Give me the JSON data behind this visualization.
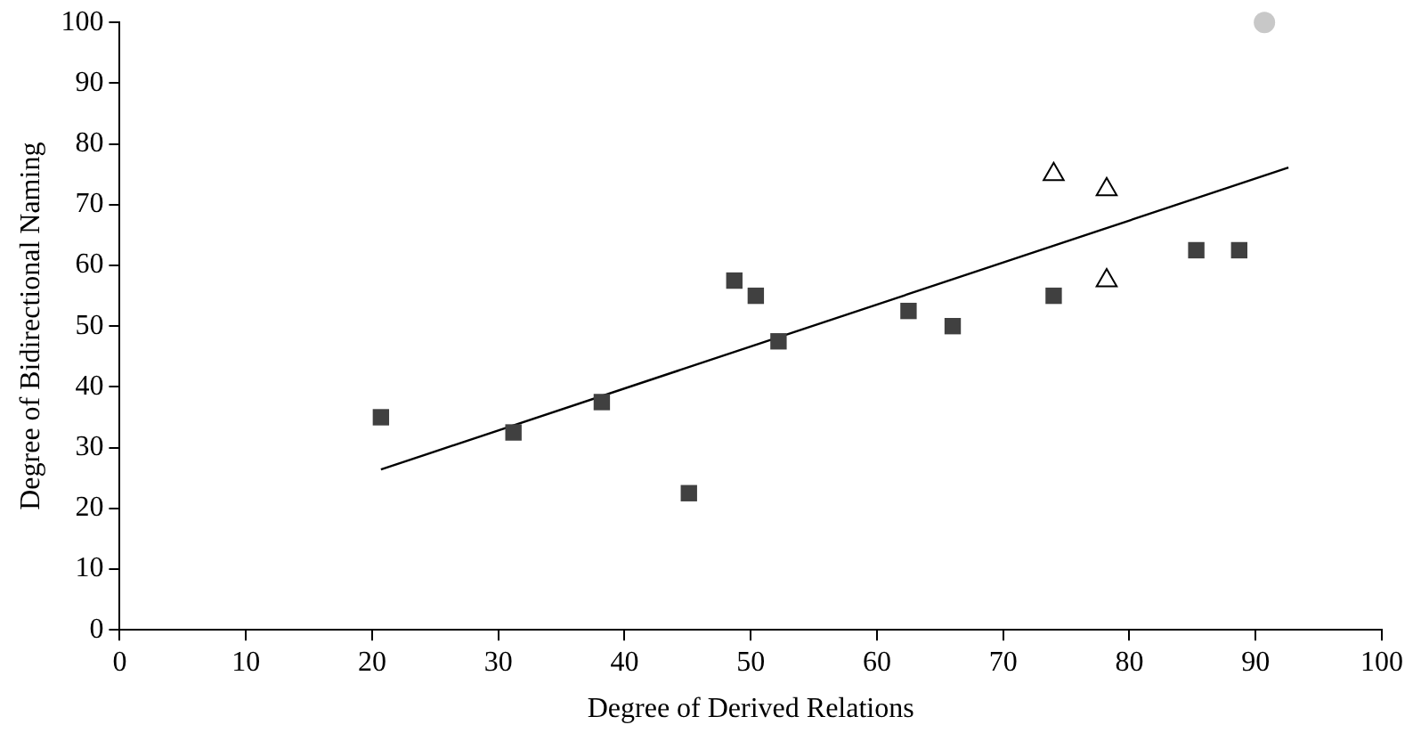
{
  "chart_data": {
    "type": "scatter",
    "xlabel": "Degree of Derived Relations",
    "ylabel": "Degree of Bidirectional Naming",
    "xlim": [
      0,
      100
    ],
    "xticks": [
      0,
      10,
      20,
      30,
      40,
      50,
      60,
      70,
      80,
      90,
      100
    ],
    "ylim": [
      0,
      100
    ],
    "yticks": [
      0,
      10,
      20,
      30,
      40,
      50,
      60,
      70,
      80,
      90,
      100
    ],
    "grid": false,
    "legend": false,
    "series": [
      {
        "marker": "square",
        "color": "#404040",
        "x": [
          20.7,
          31.2,
          38.2,
          45.1,
          48.7,
          50.4,
          52.2,
          62.5,
          66,
          74,
          85.3,
          88.7
        ],
        "values": [
          35,
          32.5,
          37.5,
          22.5,
          57.5,
          55,
          47.5,
          52.5,
          50,
          55,
          62.5,
          62.5
        ]
      },
      {
        "marker": "triangle",
        "color": "#000000",
        "x": [
          74,
          78.2,
          78.2
        ],
        "values": [
          75,
          72.5,
          57.5
        ]
      },
      {
        "marker": "circle",
        "color": "#c8c8c8",
        "x": [
          90.7
        ],
        "values": [
          100
        ]
      },
      {
        "type": "line",
        "marker": "none",
        "color": "#000000",
        "x": [
          20.7,
          92.6
        ],
        "values": [
          26.4,
          76.1
        ]
      }
    ]
  }
}
